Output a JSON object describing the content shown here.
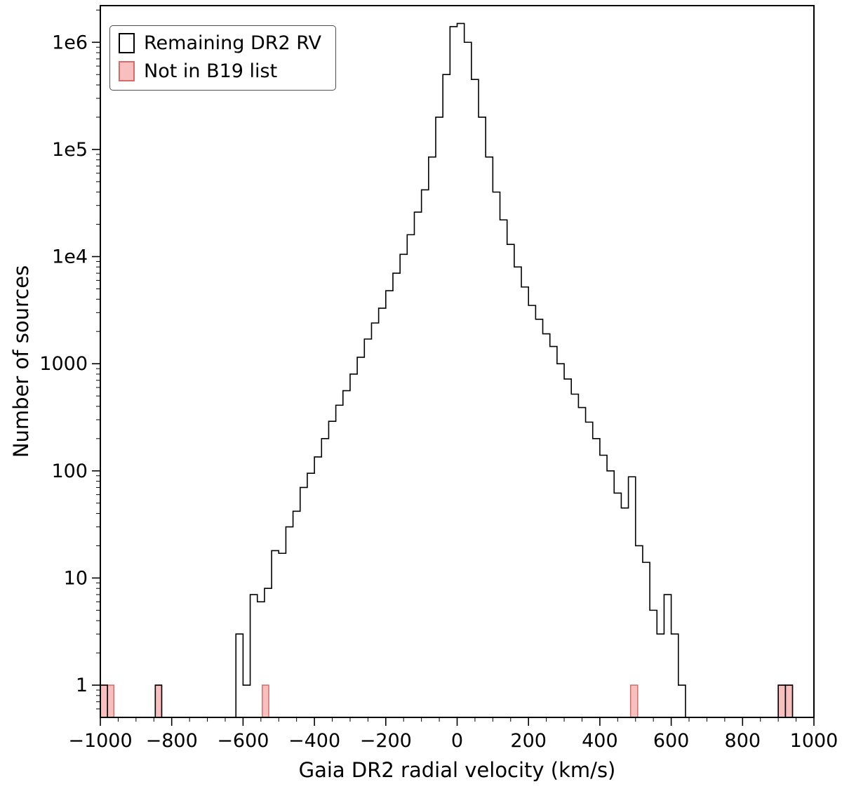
{
  "title": "",
  "legend": {
    "items": [
      {
        "label": "Remaining DR2 RV",
        "swatch": "open-black",
        "edge": "#000000",
        "fill": "none"
      },
      {
        "label": "Not in B19 list",
        "swatch": "filled-pink",
        "edge": "#d96a6a",
        "fill": "#f8bfbf"
      }
    ]
  },
  "chart_data": {
    "type": "bar",
    "subtype": "step-histogram-log-y",
    "title": "",
    "xlabel": "Gaia DR2 radial velocity (km/s)",
    "ylabel": "Number of sources",
    "xlim": [
      -1000,
      1000
    ],
    "ylim": [
      0.5,
      2200000
    ],
    "yscale": "log",
    "grid": false,
    "legend_position": "upper-left",
    "xminor_step": 50,
    "xticks": [
      {
        "v": -1000,
        "label": "−1000"
      },
      {
        "v": -800,
        "label": "−800"
      },
      {
        "v": -600,
        "label": "−600"
      },
      {
        "v": -400,
        "label": "−400"
      },
      {
        "v": -200,
        "label": "−200"
      },
      {
        "v": 0,
        "label": "0"
      },
      {
        "v": 200,
        "label": "200"
      },
      {
        "v": 400,
        "label": "400"
      },
      {
        "v": 600,
        "label": "600"
      },
      {
        "v": 800,
        "label": "800"
      },
      {
        "v": 1000,
        "label": "1000"
      }
    ],
    "yticks": [
      {
        "v": 1,
        "label": "1"
      },
      {
        "v": 10,
        "label": "10"
      },
      {
        "v": 100,
        "label": "100"
      },
      {
        "v": 1000,
        "label": "1000"
      },
      {
        "v": 10000,
        "label": "1e4"
      },
      {
        "v": 100000,
        "label": "1e5"
      },
      {
        "v": 1000000,
        "label": "1e6"
      }
    ],
    "series": [
      {
        "name": "Remaining DR2 RV",
        "style": "step-outline",
        "color": "#000000",
        "bin_width": 20,
        "bins_start": -620,
        "counts": [
          3,
          1,
          7,
          6,
          8,
          18,
          17,
          30,
          42,
          70,
          95,
          135,
          200,
          290,
          410,
          560,
          800,
          1150,
          1700,
          2400,
          3300,
          4800,
          7000,
          10500,
          16000,
          26000,
          42000,
          85000,
          200000,
          500000,
          1400000,
          1500000,
          1000000,
          450000,
          200000,
          85000,
          40000,
          22000,
          13000,
          8000,
          5200,
          3500,
          2600,
          1900,
          1450,
          1000,
          720,
          520,
          390,
          285,
          200,
          140,
          100,
          62,
          45,
          88,
          20,
          14,
          5,
          3,
          7,
          3,
          1
        ],
        "isolated_bins": [
          {
            "x0": -1000,
            "x1": -980,
            "count": 1
          },
          {
            "x0": -846,
            "x1": -828,
            "count": 1
          },
          {
            "x0": 900,
            "x1": 920,
            "count": 1
          },
          {
            "x0": 920,
            "x1": 940,
            "count": 1
          }
        ]
      },
      {
        "name": "Not in B19 list",
        "style": "filled-bar",
        "fill": "#f8bfbf",
        "edge": "#d96a6a",
        "bars": [
          {
            "x0": -1000,
            "x1": -980,
            "count": 1
          },
          {
            "x0": -980,
            "x1": -962,
            "count": 1
          },
          {
            "x0": -846,
            "x1": -828,
            "count": 1
          },
          {
            "x0": -546,
            "x1": -528,
            "count": 1
          },
          {
            "x0": 486,
            "x1": 506,
            "count": 1
          },
          {
            "x0": 900,
            "x1": 920,
            "count": 1
          },
          {
            "x0": 920,
            "x1": 940,
            "count": 1
          }
        ]
      }
    ]
  }
}
